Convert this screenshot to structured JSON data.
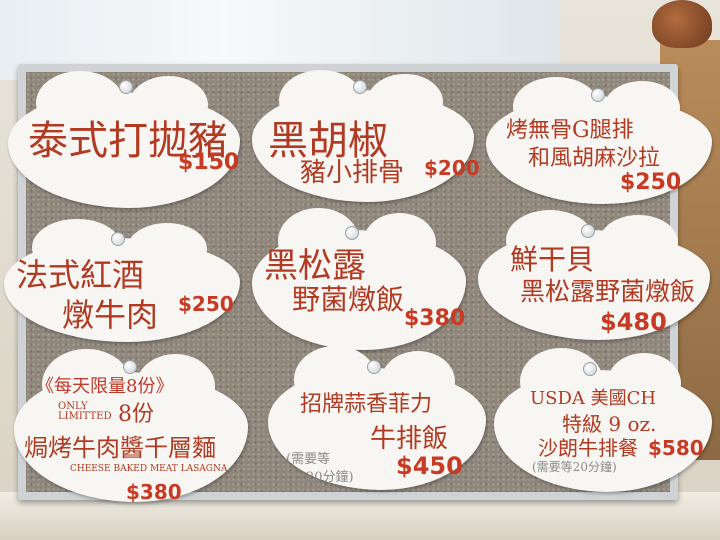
{
  "menu": {
    "item1": {
      "name": "泰式打拋豬",
      "price": "$150"
    },
    "item2": {
      "name_line1": "黑胡椒",
      "name_line2": "豬小排骨",
      "price": "$200"
    },
    "item3": {
      "name_line1": "烤無骨G腿排",
      "name_line2": "和風胡麻沙拉",
      "price": "$250"
    },
    "item4": {
      "name_line1": "法式紅酒",
      "name_line2": "燉牛肉",
      "price": "$250"
    },
    "item5": {
      "name_line1": "黑松露",
      "name_line2": "野菌燉飯",
      "price": "$380"
    },
    "item6": {
      "name_line1": "鮮干貝",
      "name_line2": "黑松露野菌燉飯",
      "price": "$480"
    },
    "item7": {
      "tag": "《每天限量8份》",
      "limited": "ONLY LIMITTED",
      "qty": "8份",
      "name": "焗烤牛肉醬千層麵",
      "name_en": "CHEESE BAKED MEAT LASAGNA",
      "price": "$380"
    },
    "item8": {
      "name_line1": "招牌蒜香菲力",
      "name_line2": "牛排飯",
      "note_line1": "(需要等",
      "note_line2": "20分鐘)",
      "price": "$450"
    },
    "item9": {
      "name_line1": "USDA 美國CH",
      "name_line2": "特級 9 oz.",
      "name_line3": "沙朗牛排餐",
      "note": "(需要等20分鐘)",
      "price": "$580"
    }
  }
}
